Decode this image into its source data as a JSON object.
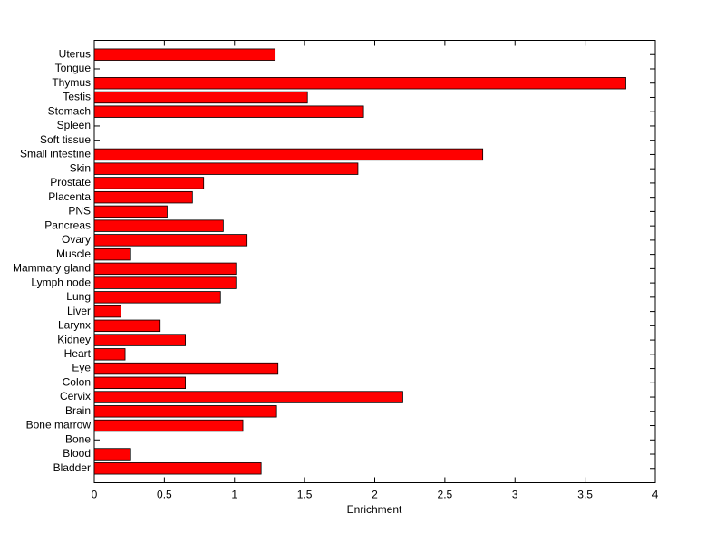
{
  "chart_data": {
    "type": "barh",
    "xlabel": "Enrichment",
    "categories": [
      "Bladder",
      "Blood",
      "Bone",
      "Bone marrow",
      "Brain",
      "Cervix",
      "Colon",
      "Eye",
      "Heart",
      "Kidney",
      "Larynx",
      "Liver",
      "Lung",
      "Lymph node",
      "Mammary gland",
      "Muscle",
      "Ovary",
      "Pancreas",
      "PNS",
      "Placenta",
      "Prostate",
      "Skin",
      "Small intestine",
      "Soft tissue",
      "Spleen",
      "Stomach",
      "Testis",
      "Thymus",
      "Tongue",
      "Uterus"
    ],
    "values": [
      1.19,
      0.26,
      0,
      1.06,
      1.3,
      2.2,
      0.65,
      1.31,
      0.22,
      0.65,
      0.47,
      0.19,
      0.9,
      1.01,
      1.01,
      0.26,
      1.09,
      0.92,
      0.52,
      0.7,
      0.78,
      1.88,
      2.77,
      0,
      0,
      1.92,
      1.52,
      3.79,
      0,
      1.29
    ],
    "color": "#ff0000",
    "xlim": [
      0,
      4
    ],
    "xticks": [
      0,
      0.5,
      1,
      1.5,
      2,
      2.5,
      3,
      3.5,
      4
    ]
  }
}
